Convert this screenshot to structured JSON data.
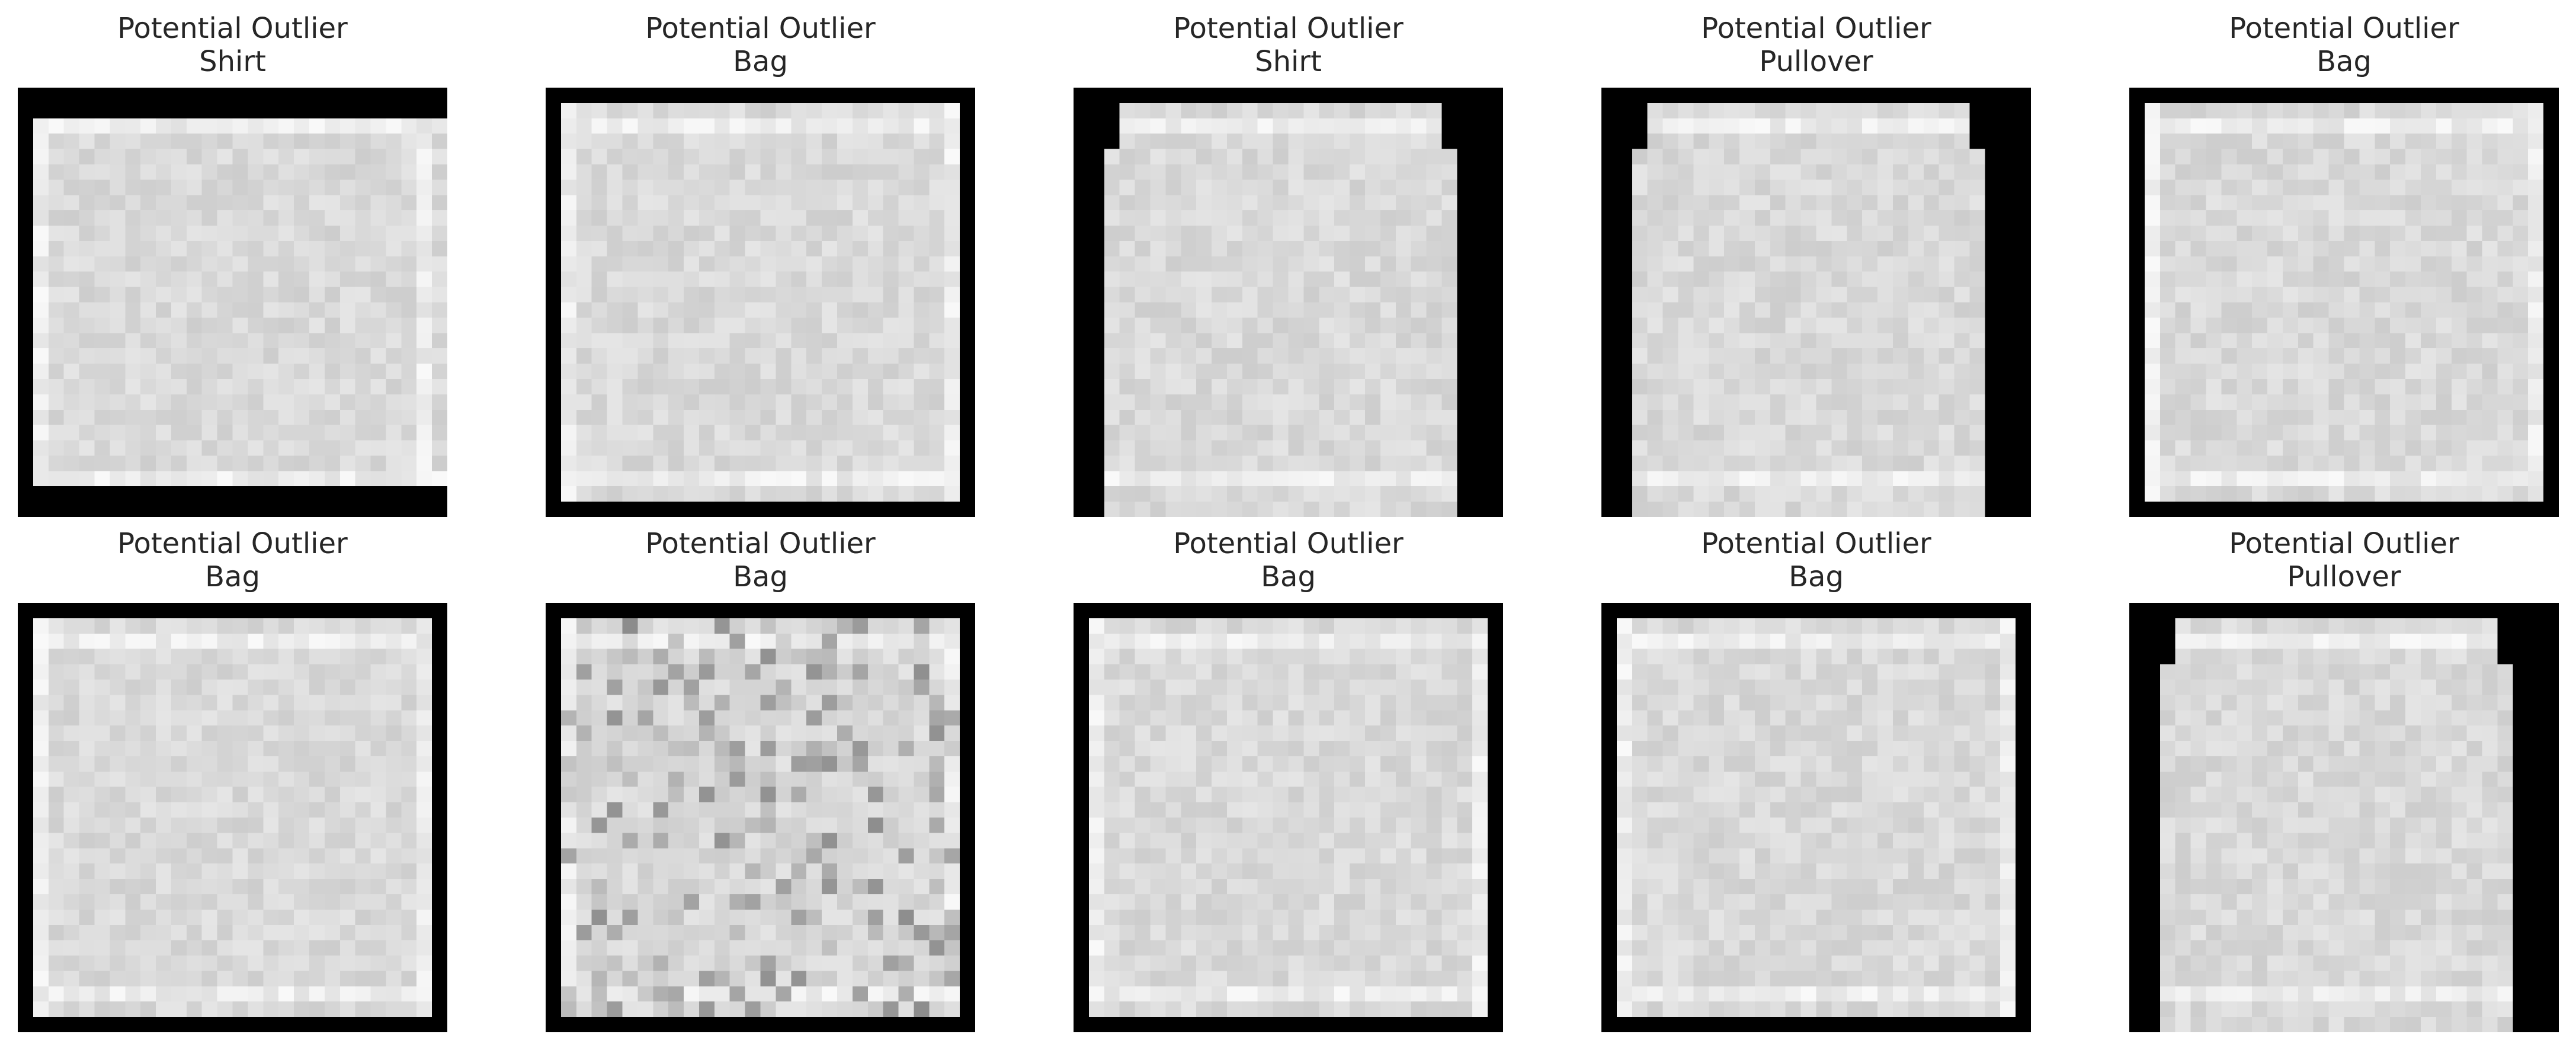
{
  "figure": {
    "panels": [
      {
        "title": "Potential Outlier",
        "label": "Shirt",
        "kind": "shirt"
      },
      {
        "title": "Potential Outlier",
        "label": "Bag",
        "kind": "bag"
      },
      {
        "title": "Potential Outlier",
        "label": "Shirt",
        "kind": "longsleeve"
      },
      {
        "title": "Potential Outlier",
        "label": "Pullover",
        "kind": "pullover"
      },
      {
        "title": "Potential Outlier",
        "label": "Bag",
        "kind": "bag"
      },
      {
        "title": "Potential Outlier",
        "label": "Bag",
        "kind": "bag"
      },
      {
        "title": "Potential Outlier",
        "label": "Bag",
        "kind": "bag-textured"
      },
      {
        "title": "Potential Outlier",
        "label": "Bag",
        "kind": "bag"
      },
      {
        "title": "Potential Outlier",
        "label": "Bag",
        "kind": "bag"
      },
      {
        "title": "Potential Outlier",
        "label": "Pullover",
        "kind": "pullover-angled"
      }
    ]
  }
}
